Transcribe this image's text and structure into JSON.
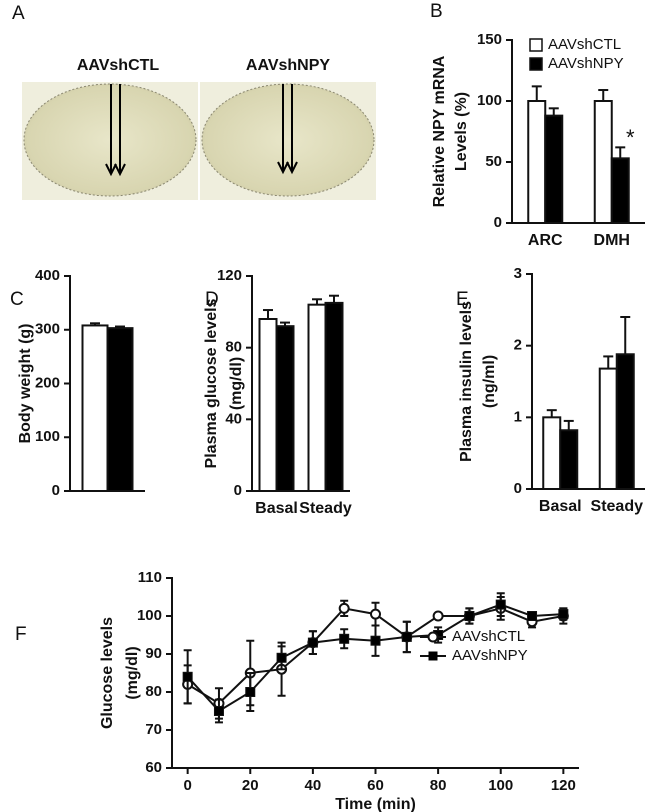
{
  "image_panel": {
    "panel_label": "A",
    "labels": [
      "AAVshCTL",
      "AAVshNPY"
    ]
  },
  "chart_data": [
    {
      "type": "bar",
      "panel_label": "B",
      "ylabel": [
        "Relative NPY mRNA",
        "Levels (%)"
      ],
      "categories": [
        "ARC",
        "DMH"
      ],
      "series": [
        {
          "name": "AAVshCTL",
          "color": "#ffffff",
          "values": [
            100,
            100
          ],
          "errors": [
            12,
            9
          ]
        },
        {
          "name": "AAVshNPY",
          "color": "#000000",
          "values": [
            88,
            53
          ],
          "errors": [
            6,
            9
          ]
        }
      ],
      "ylim": [
        0,
        150
      ],
      "yticks": [
        0,
        50,
        100,
        150
      ],
      "annotations": [
        "*"
      ],
      "legend": "top-right"
    },
    {
      "type": "bar",
      "panel_label": "C",
      "ylabel": [
        "Body weight (g)"
      ],
      "categories": [
        null
      ],
      "series": [
        {
          "name": "AAVshCTL",
          "color": "#ffffff",
          "values": [
            308
          ],
          "errors": [
            4
          ]
        },
        {
          "name": "AAVshNPY",
          "color": "#000000",
          "values": [
            303
          ],
          "errors": [
            3
          ]
        }
      ],
      "ylim": [
        0,
        400
      ],
      "yticks": [
        0,
        100,
        200,
        300,
        400
      ]
    },
    {
      "type": "bar",
      "panel_label": "D",
      "ylabel": [
        "Plasma glucose levels",
        "(mg/dl)"
      ],
      "categories": [
        "Basal",
        "Steady"
      ],
      "series": [
        {
          "name": "AAVshCTL",
          "color": "#ffffff",
          "values": [
            96,
            104
          ],
          "errors": [
            5,
            3
          ]
        },
        {
          "name": "AAVshNPY",
          "color": "#000000",
          "values": [
            92,
            105
          ],
          "errors": [
            2,
            4
          ]
        }
      ],
      "ylim": [
        0,
        120
      ],
      "yticks": [
        0,
        40,
        80,
        120
      ]
    },
    {
      "type": "bar",
      "panel_label": "E",
      "ylabel": [
        "Plasma insulin levels",
        "(ng/ml)"
      ],
      "categories": [
        "Basal",
        "Steady"
      ],
      "series": [
        {
          "name": "AAVshCTL",
          "color": "#ffffff",
          "values": [
            1.0,
            1.68
          ],
          "errors": [
            0.1,
            0.17
          ]
        },
        {
          "name": "AAVshNPY",
          "color": "#000000",
          "values": [
            0.82,
            1.88
          ],
          "errors": [
            0.13,
            0.52
          ]
        }
      ],
      "ylim": [
        0,
        3
      ],
      "yticks": [
        0,
        1,
        2,
        3
      ]
    },
    {
      "type": "line",
      "panel_label": "F",
      "ylabel": [
        "Glucose levels",
        "(mg/dl)"
      ],
      "xlabel": "Time (min)",
      "x": [
        0,
        10,
        20,
        30,
        40,
        50,
        60,
        70,
        80,
        90,
        100,
        110,
        120
      ],
      "series": [
        {
          "name": "AAVshCTL",
          "color": "#ffffff",
          "marker": "circle",
          "values": [
            82,
            77,
            85,
            86,
            93,
            102,
            100.5,
            94.5,
            100,
            100,
            102,
            98.5,
            100
          ],
          "errors": [
            5,
            4,
            8.5,
            7,
            3,
            2,
            3,
            4,
            0.5,
            2,
            3,
            1.5,
            2
          ]
        },
        {
          "name": "AAVshNPY",
          "color": "#000000",
          "marker": "square",
          "values": [
            84,
            75,
            80,
            89,
            93,
            94,
            93.5,
            94.5,
            95,
            100,
            103,
            100,
            100.5
          ],
          "errors": [
            7,
            3,
            5,
            3,
            3,
            2.5,
            4,
            4,
            2,
            2,
            3,
            1,
            1.5
          ]
        }
      ],
      "xlim": [
        -5,
        125
      ],
      "xticks": [
        0,
        20,
        40,
        60,
        80,
        100,
        120
      ],
      "ylim": [
        60,
        110
      ],
      "yticks": [
        60,
        70,
        80,
        90,
        100,
        110
      ],
      "legend": "top"
    }
  ]
}
